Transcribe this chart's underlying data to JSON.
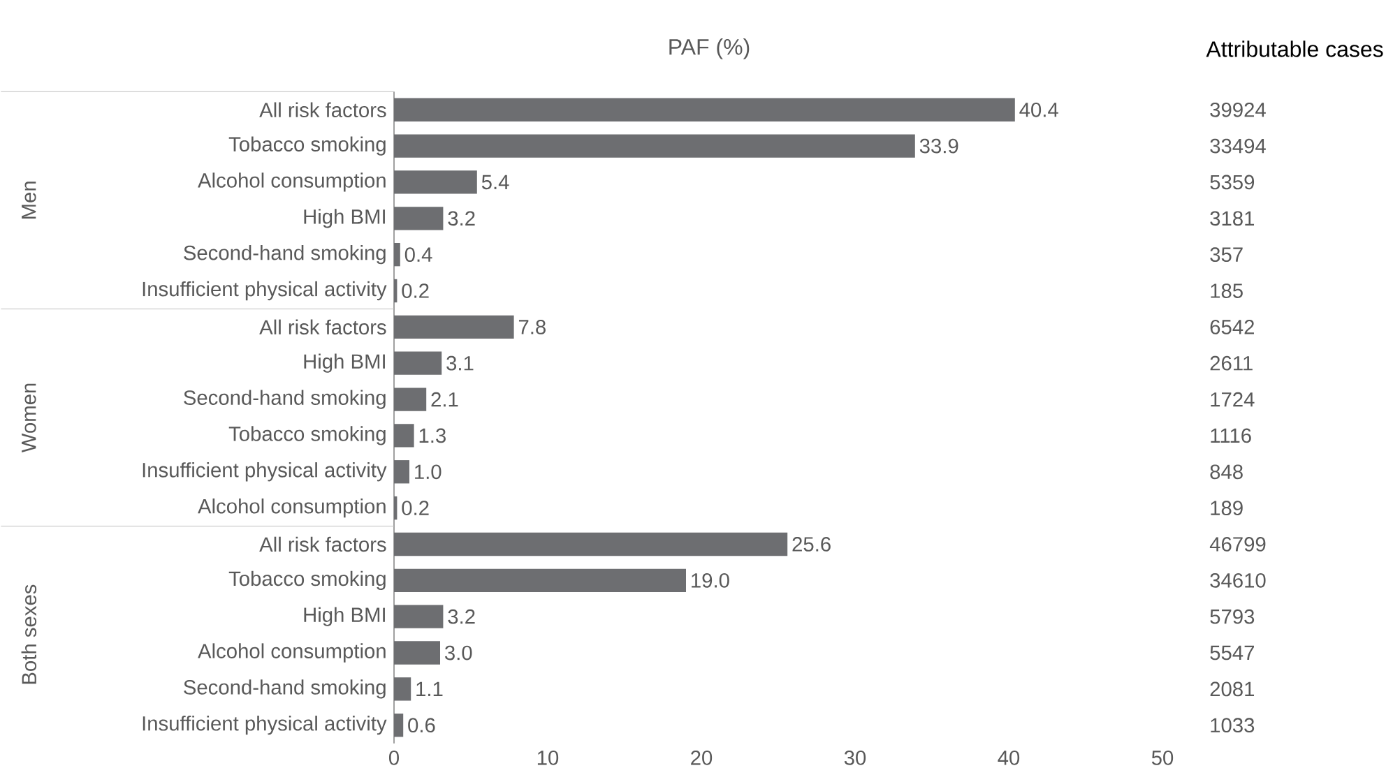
{
  "chart_data": {
    "type": "bar",
    "orientation": "horizontal",
    "title": "PAF (%)",
    "y2label": "Attributable cases",
    "categories": [
      "All risk factors",
      "Tobacco smoking",
      "Alcohol consumption",
      "High BMI",
      "Second-hand smoking",
      "Insufficient physical activity",
      "All risk factors",
      "High BMI",
      "Second-hand smoking",
      "Tobacco smoking",
      "Insufficient physical activity",
      "Alcohol consumption",
      "All risk factors",
      "Tobacco smoking",
      "High BMI",
      "Alcohol consumption",
      "Second-hand smoking",
      "Insufficient physical activity"
    ],
    "values": [
      40.4,
      33.9,
      5.4,
      3.2,
      0.4,
      0.2,
      7.8,
      3.1,
      2.1,
      1.3,
      1.0,
      0.2,
      25.6,
      19.0,
      3.2,
      3.0,
      1.1,
      0.6
    ],
    "value_labels": [
      "40.4",
      "33.9",
      "5.4",
      "3.2",
      "0.4",
      "0.2",
      "7.8",
      "3.1",
      "2.1",
      "1.3",
      "1.0",
      "0.2",
      "25.6",
      "19.0",
      "3.2",
      "3.0",
      "1.1",
      "0.6"
    ],
    "y2_categories": [
      "39924",
      "33494",
      "5359",
      "3181",
      "357",
      "185",
      "6542",
      "2611",
      "1724",
      "1116",
      "848",
      "189",
      "46799",
      "34610",
      "5793",
      "5547",
      "2081",
      "1033"
    ],
    "annotations": [
      "Men",
      "Women",
      "Both sexes"
    ],
    "color": "#6d6e71",
    "xlim": [
      0,
      50
    ],
    "xticks": [
      0,
      10,
      20,
      30,
      40,
      50
    ]
  }
}
